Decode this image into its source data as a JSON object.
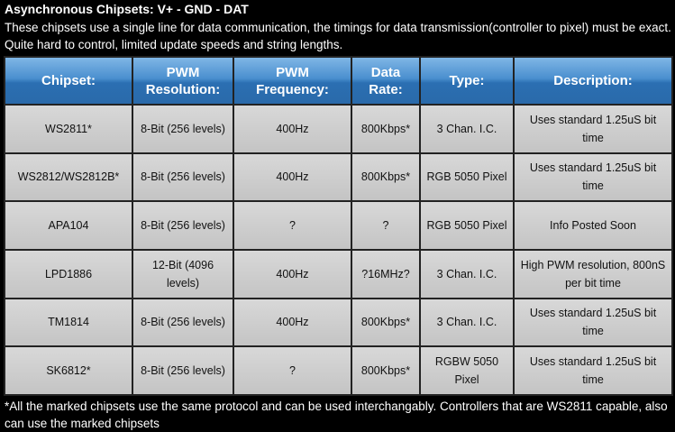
{
  "header": {
    "title": "Asynchronous Chipsets: V+ - GND - DAT",
    "text": "These chipsets use a single line for data communication, the timings for data transmission(controller to pixel) must be exact. Quite hard to control, limited update speeds and string lengths."
  },
  "table": {
    "columns": [
      "Chipset:",
      "PWM Resolution:",
      "PWM Frequency:",
      "Data Rate:",
      "Type:",
      "Description:"
    ],
    "rows": [
      [
        "WS2811*",
        "8-Bit (256 levels)",
        "400Hz",
        "800Kbps*",
        "3 Chan. I.C.",
        "Uses standard 1.25uS bit time"
      ],
      [
        "WS2812/WS2812B*",
        "8-Bit (256 levels)",
        "400Hz",
        "800Kbps*",
        "RGB 5050 Pixel",
        "Uses standard 1.25uS bit time"
      ],
      [
        "APA104",
        "8-Bit (256 levels)",
        "?",
        "?",
        "RGB 5050 Pixel",
        "Info Posted Soon"
      ],
      [
        "LPD1886",
        "12-Bit (4096 levels)",
        "400Hz",
        "?16MHz?",
        "3 Chan. I.C.",
        "High PWM resolution, 800nS per bit time"
      ],
      [
        "TM1814",
        "8-Bit (256 levels)",
        "400Hz",
        "800Kbps*",
        "3 Chan. I.C.",
        "Uses standard 1.25uS bit time"
      ],
      [
        "SK6812*",
        "8-Bit (256 levels)",
        "?",
        "800Kbps*",
        "RGBW 5050 Pixel",
        "Uses standard 1.25uS bit time"
      ]
    ]
  },
  "footer": {
    "text": "*All the marked chipsets use the same protocol and can be used interchangably. Controllers that are WS2811 capable, also can use the marked chipsets"
  }
}
